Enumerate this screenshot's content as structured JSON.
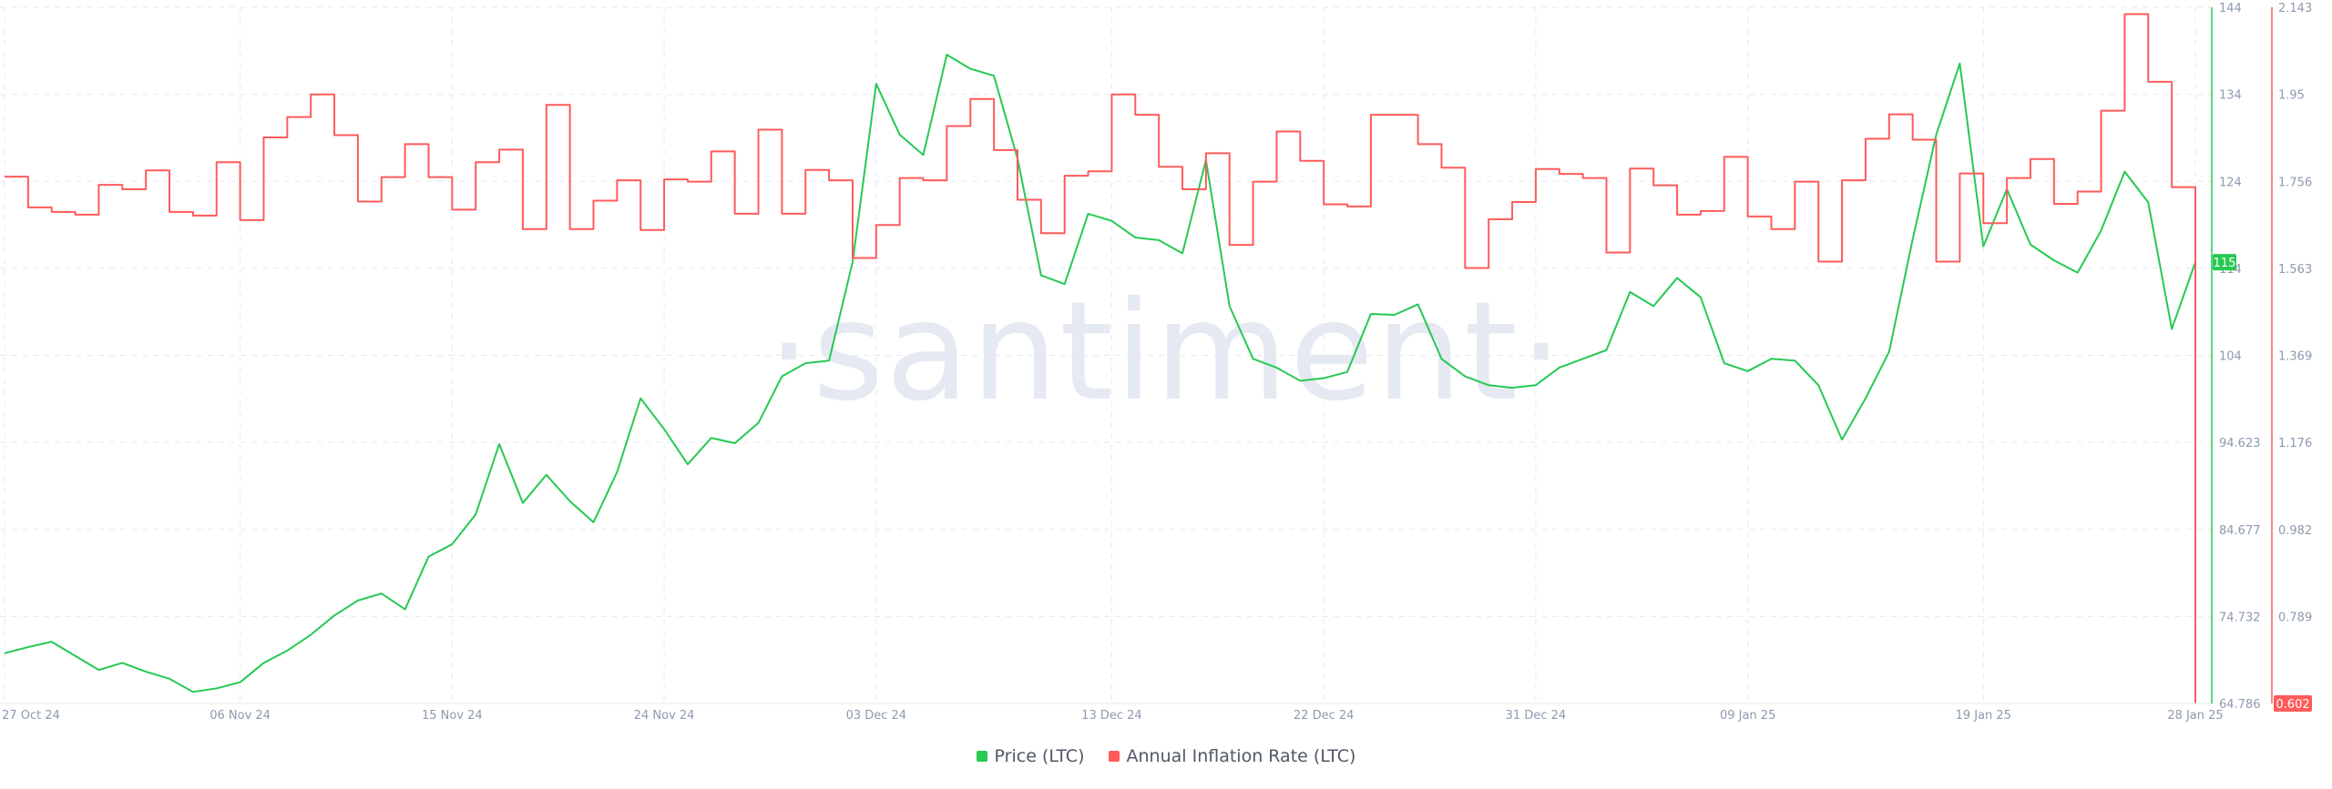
{
  "watermark": "·santiment·",
  "colors": {
    "price": "#26c953",
    "inflation": "#ff5b5b",
    "grid": "#e6e9ef",
    "text": "#8e9aae"
  },
  "chart_data": {
    "type": "line",
    "title": "",
    "x_ticks": [
      "27 Oct 24",
      "06 Nov 24",
      "15 Nov 24",
      "24 Nov 24",
      "03 Dec 24",
      "13 Dec 24",
      "22 Dec 24",
      "31 Dec 24",
      "09 Jan 25",
      "19 Jan 25",
      "28 Jan 25"
    ],
    "x_range": [
      "2024-10-27",
      "2025-01-28"
    ],
    "y_left": {
      "label": "",
      "ticks": [
        "144",
        "134",
        "124",
        "114",
        "104",
        "94.623",
        "84.677",
        "74.732",
        "64.786"
      ],
      "range": [
        64.786,
        144
      ]
    },
    "y_right": {
      "label": "",
      "ticks": [
        "2.143",
        "1.95",
        "1.756",
        "1.563",
        "1.369",
        "1.176",
        "0.982",
        "0.789",
        "0.602"
      ],
      "range": [
        0.602,
        2.143
      ]
    },
    "current_values": {
      "price": "115",
      "inflation": "0.602"
    },
    "legend_position": "bottom-center",
    "grid": true,
    "series": [
      {
        "name": "Price (LTC)",
        "axis": "left",
        "color": "#26c953",
        "points": [
          [
            "2024-10-27",
            70.5
          ],
          [
            "2024-10-28",
            71.2
          ],
          [
            "2024-10-29",
            71.8
          ],
          [
            "2024-10-30",
            70.2
          ],
          [
            "2024-10-31",
            68.6
          ],
          [
            "2024-11-01",
            69.4
          ],
          [
            "2024-11-02",
            68.4
          ],
          [
            "2024-11-03",
            67.6
          ],
          [
            "2024-11-04",
            66.1
          ],
          [
            "2024-11-05",
            66.5
          ],
          [
            "2024-11-06",
            67.2
          ],
          [
            "2024-11-07",
            69.4
          ],
          [
            "2024-11-08",
            70.8
          ],
          [
            "2024-11-09",
            72.6
          ],
          [
            "2024-11-10",
            74.8
          ],
          [
            "2024-11-11",
            76.5
          ],
          [
            "2024-11-12",
            77.3
          ],
          [
            "2024-11-13",
            75.5
          ],
          [
            "2024-11-14",
            81.5
          ],
          [
            "2024-11-15",
            82.9
          ],
          [
            "2024-11-16",
            86.3
          ],
          [
            "2024-11-17",
            94.3
          ],
          [
            "2024-11-18",
            87.6
          ],
          [
            "2024-11-19",
            90.8
          ],
          [
            "2024-11-20",
            87.8
          ],
          [
            "2024-11-21",
            85.4
          ],
          [
            "2024-11-22",
            91.1
          ],
          [
            "2024-11-23",
            99.5
          ],
          [
            "2024-11-24",
            96.0
          ],
          [
            "2024-11-25",
            92.0
          ],
          [
            "2024-11-26",
            95.0
          ],
          [
            "2024-11-27",
            94.4
          ],
          [
            "2024-11-28",
            96.7
          ],
          [
            "2024-11-29",
            102.0
          ],
          [
            "2024-11-30",
            103.5
          ],
          [
            "2024-12-01",
            103.8
          ],
          [
            "2024-12-02",
            115.0
          ],
          [
            "2024-12-03",
            135.3
          ],
          [
            "2024-12-04",
            129.5
          ],
          [
            "2024-12-05",
            127.2
          ],
          [
            "2024-12-06",
            138.6
          ],
          [
            "2024-12-07",
            137.0
          ],
          [
            "2024-12-08",
            136.2
          ],
          [
            "2024-12-09",
            126.8
          ],
          [
            "2024-12-10",
            113.5
          ],
          [
            "2024-12-11",
            112.5
          ],
          [
            "2024-12-12",
            120.5
          ],
          [
            "2024-12-13",
            119.7
          ],
          [
            "2024-12-14",
            117.8
          ],
          [
            "2024-12-15",
            117.5
          ],
          [
            "2024-12-16",
            116.0
          ],
          [
            "2024-12-17",
            126.6
          ],
          [
            "2024-12-18",
            110.0
          ],
          [
            "2024-12-19",
            104.0
          ],
          [
            "2024-12-20",
            103.0
          ],
          [
            "2024-12-21",
            101.5
          ],
          [
            "2024-12-22",
            101.8
          ],
          [
            "2024-12-23",
            102.5
          ],
          [
            "2024-12-24",
            109.1
          ],
          [
            "2024-12-25",
            109.0
          ],
          [
            "2024-12-26",
            110.2
          ],
          [
            "2024-12-27",
            104.0
          ],
          [
            "2024-12-28",
            102.0
          ],
          [
            "2024-12-29",
            101.0
          ],
          [
            "2024-12-30",
            100.7
          ],
          [
            "2024-12-31",
            101.0
          ],
          [
            "2025-01-01",
            103.0
          ],
          [
            "2025-01-02",
            104.0
          ],
          [
            "2025-01-03",
            105.0
          ],
          [
            "2025-01-04",
            111.6
          ],
          [
            "2025-01-05",
            110.0
          ],
          [
            "2025-01-06",
            113.2
          ],
          [
            "2025-01-07",
            111.0
          ],
          [
            "2025-01-08",
            103.5
          ],
          [
            "2025-01-09",
            102.6
          ],
          [
            "2025-01-10",
            104.0
          ],
          [
            "2025-01-11",
            103.8
          ],
          [
            "2025-01-12",
            101.0
          ],
          [
            "2025-01-13",
            94.8
          ],
          [
            "2025-01-14",
            99.5
          ],
          [
            "2025-01-15",
            104.8
          ],
          [
            "2025-01-16",
            117.6
          ],
          [
            "2025-01-17",
            129.5
          ],
          [
            "2025-01-18",
            137.6
          ],
          [
            "2025-01-19",
            116.8
          ],
          [
            "2025-01-20",
            123.3
          ],
          [
            "2025-01-21",
            117.0
          ],
          [
            "2025-01-22",
            115.2
          ],
          [
            "2025-01-23",
            113.8
          ],
          [
            "2025-01-24",
            118.6
          ],
          [
            "2025-01-25",
            125.3
          ],
          [
            "2025-01-26",
            121.8
          ],
          [
            "2025-01-27",
            107.4
          ],
          [
            "2025-01-28",
            115.0
          ]
        ]
      },
      {
        "name": "Annual Inflation Rate (LTC)",
        "axis": "right",
        "color": "#ff5b5b",
        "points": [
          [
            "2024-10-27",
            1.768
          ],
          [
            "2024-10-28",
            1.7
          ],
          [
            "2024-10-29",
            1.69
          ],
          [
            "2024-10-30",
            1.684
          ],
          [
            "2024-10-31",
            1.75
          ],
          [
            "2024-11-01",
            1.74
          ],
          [
            "2024-11-02",
            1.782
          ],
          [
            "2024-11-03",
            1.69
          ],
          [
            "2024-11-04",
            1.682
          ],
          [
            "2024-11-05",
            1.8
          ],
          [
            "2024-11-06",
            1.672
          ],
          [
            "2024-11-07",
            1.855
          ],
          [
            "2024-11-08",
            1.9
          ],
          [
            "2024-11-09",
            1.95
          ],
          [
            "2024-11-10",
            1.86
          ],
          [
            "2024-11-11",
            1.713
          ],
          [
            "2024-11-12",
            1.767
          ],
          [
            "2024-11-13",
            1.84
          ],
          [
            "2024-11-14",
            1.767
          ],
          [
            "2024-11-15",
            1.695
          ],
          [
            "2024-11-16",
            1.8
          ],
          [
            "2024-11-17",
            1.828
          ],
          [
            "2024-11-18",
            1.652
          ],
          [
            "2024-11-19",
            1.927
          ],
          [
            "2024-11-20",
            1.652
          ],
          [
            "2024-11-21",
            1.715
          ],
          [
            "2024-11-22",
            1.76
          ],
          [
            "2024-11-23",
            1.65
          ],
          [
            "2024-11-24",
            1.762
          ],
          [
            "2024-11-25",
            1.757
          ],
          [
            "2024-11-26",
            1.824
          ],
          [
            "2024-11-27",
            1.686
          ],
          [
            "2024-11-28",
            1.872
          ],
          [
            "2024-11-29",
            1.686
          ],
          [
            "2024-11-30",
            1.783
          ],
          [
            "2024-12-01",
            1.76
          ],
          [
            "2024-12-02",
            1.588
          ],
          [
            "2024-12-03",
            1.661
          ],
          [
            "2024-12-04",
            1.765
          ],
          [
            "2024-12-05",
            1.76
          ],
          [
            "2024-12-06",
            1.88
          ],
          [
            "2024-12-07",
            1.94
          ],
          [
            "2024-12-08",
            1.827
          ],
          [
            "2024-12-09",
            1.717
          ],
          [
            "2024-12-10",
            1.643
          ],
          [
            "2024-12-11",
            1.77
          ],
          [
            "2024-12-12",
            1.78
          ],
          [
            "2024-12-13",
            1.95
          ],
          [
            "2024-12-14",
            1.905
          ],
          [
            "2024-12-15",
            1.79
          ],
          [
            "2024-12-16",
            1.74
          ],
          [
            "2024-12-17",
            1.82
          ],
          [
            "2024-12-18",
            1.617
          ],
          [
            "2024-12-19",
            1.757
          ],
          [
            "2024-12-20",
            1.868
          ],
          [
            "2024-12-21",
            1.803
          ],
          [
            "2024-12-22",
            1.707
          ],
          [
            "2024-12-23",
            1.702
          ],
          [
            "2024-12-24",
            1.905
          ],
          [
            "2024-12-25",
            1.905
          ],
          [
            "2024-12-26",
            1.84
          ],
          [
            "2024-12-27",
            1.788
          ],
          [
            "2024-12-28",
            1.566
          ],
          [
            "2024-12-29",
            1.674
          ],
          [
            "2024-12-30",
            1.712
          ],
          [
            "2024-12-31",
            1.785
          ],
          [
            "2025-01-01",
            1.774
          ],
          [
            "2025-01-02",
            1.765
          ],
          [
            "2025-01-03",
            1.6
          ],
          [
            "2025-01-04",
            1.786
          ],
          [
            "2025-01-05",
            1.749
          ],
          [
            "2025-01-06",
            1.684
          ],
          [
            "2025-01-07",
            1.692
          ],
          [
            "2025-01-08",
            1.812
          ],
          [
            "2025-01-09",
            1.68
          ],
          [
            "2025-01-10",
            1.652
          ],
          [
            "2025-01-11",
            1.757
          ],
          [
            "2025-01-12",
            1.58
          ],
          [
            "2025-01-13",
            1.76
          ],
          [
            "2025-01-14",
            1.852
          ],
          [
            "2025-01-15",
            1.906
          ],
          [
            "2025-01-16",
            1.85
          ],
          [
            "2025-01-17",
            1.58
          ],
          [
            "2025-01-18",
            1.775
          ],
          [
            "2025-01-19",
            1.665
          ],
          [
            "2025-01-20",
            1.765
          ],
          [
            "2025-01-21",
            1.807
          ],
          [
            "2025-01-22",
            1.708
          ],
          [
            "2025-01-23",
            1.735
          ],
          [
            "2025-01-24",
            1.914
          ],
          [
            "2025-01-25",
            2.128
          ],
          [
            "2025-01-26",
            1.978
          ],
          [
            "2025-01-27",
            1.745
          ],
          [
            "2025-01-28",
            0.602
          ]
        ]
      }
    ]
  },
  "legend": {
    "items": [
      {
        "label": "Price (LTC)",
        "color": "#26c953"
      },
      {
        "label": "Annual Inflation Rate (LTC)",
        "color": "#ff5b5b"
      }
    ]
  }
}
